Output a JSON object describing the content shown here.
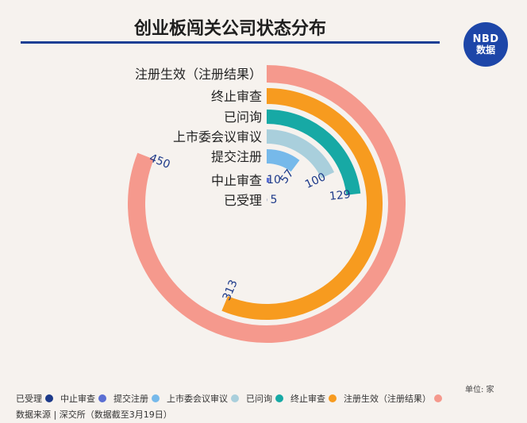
{
  "header": {
    "title": "创业板闯关公司状态分布",
    "logo_top": "NBD",
    "logo_bottom": "数据"
  },
  "unit": "单位: 家",
  "source": "数据来源 | 深交所（数据截至3月19日）",
  "colors": {
    "title_rule": "#1c3f94",
    "logo": "#1d46a8",
    "value_label": "#1d3a8a"
  },
  "chart_data": {
    "type": "radial-bar",
    "title": "创业板闯关公司状态分布",
    "unit": "家",
    "categories": [
      "注册生效（注册结果）",
      "终止审查",
      "已问询",
      "上市委会议审议",
      "提交注册",
      "中止审查",
      "已受理"
    ],
    "values": [
      450,
      313,
      129,
      100,
      57,
      10,
      5
    ],
    "colors": [
      "#f5998d",
      "#f79b1f",
      "#17a9a5",
      "#a9cfdc",
      "#76b9ea",
      "#5b6fd3",
      "#1d3a8a"
    ],
    "legend": {
      "position": "bottom",
      "items": [
        "已受理",
        "中止审查",
        "提交注册",
        "上市委会议审议",
        "已问询",
        "终止审查",
        "注册生效（注册结果）"
      ],
      "colors": [
        "#1d3a8a",
        "#5b6fd3",
        "#76b9ea",
        "#a9cfdc",
        "#17a9a5",
        "#f79b1f",
        "#f5998d"
      ]
    }
  }
}
